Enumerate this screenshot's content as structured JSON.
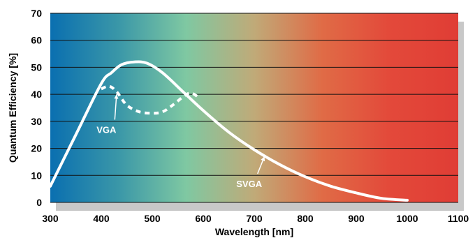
{
  "chart_data": {
    "type": "line",
    "xlabel": "Wavelength [nm]",
    "ylabel": "Quantum Efficiency [%]",
    "xlim": [
      300,
      1100
    ],
    "ylim": [
      0,
      70
    ],
    "x_ticks": [
      300,
      400,
      500,
      600,
      700,
      800,
      900,
      1000,
      1100
    ],
    "y_ticks": [
      0,
      10,
      20,
      30,
      40,
      50,
      60,
      70
    ],
    "grid": "horizontal",
    "background": "visible spectrum gradient (blue to green to red)",
    "colors": {
      "line": "#ffffff",
      "grid": "#111111",
      "shadow": "#c8c8c8",
      "spectrum": [
        "#0a6fb0",
        "#3a97a8",
        "#7fc8a2",
        "#c0aa78",
        "#e06b46",
        "#e3493a",
        "#e03d35"
      ]
    },
    "series": [
      {
        "name": "SVGA",
        "style": "solid",
        "points": [
          [
            300,
            6
          ],
          [
            350,
            25
          ],
          [
            400,
            44
          ],
          [
            420,
            48
          ],
          [
            440,
            51
          ],
          [
            465,
            52
          ],
          [
            490,
            51.5
          ],
          [
            520,
            48
          ],
          [
            560,
            41
          ],
          [
            600,
            34
          ],
          [
            650,
            26
          ],
          [
            700,
            19.5
          ],
          [
            750,
            14
          ],
          [
            800,
            9.5
          ],
          [
            850,
            6
          ],
          [
            900,
            3.5
          ],
          [
            950,
            1.5
          ],
          [
            1000,
            0.8
          ]
        ]
      },
      {
        "name": "VGA",
        "style": "dashed",
        "points": [
          [
            400,
            42
          ],
          [
            415,
            43
          ],
          [
            430,
            41
          ],
          [
            450,
            36
          ],
          [
            475,
            33.5
          ],
          [
            500,
            33
          ],
          [
            520,
            33.5
          ],
          [
            540,
            36
          ],
          [
            560,
            39
          ],
          [
            575,
            40.5
          ],
          [
            590,
            39
          ]
        ]
      }
    ],
    "annotations": [
      {
        "label": "VGA",
        "target": [
          430,
          40
        ],
        "text_at": [
          410,
          27
        ]
      },
      {
        "label": "SVGA",
        "target": [
          720,
          17
        ],
        "text_at": [
          690,
          7
        ]
      }
    ]
  }
}
